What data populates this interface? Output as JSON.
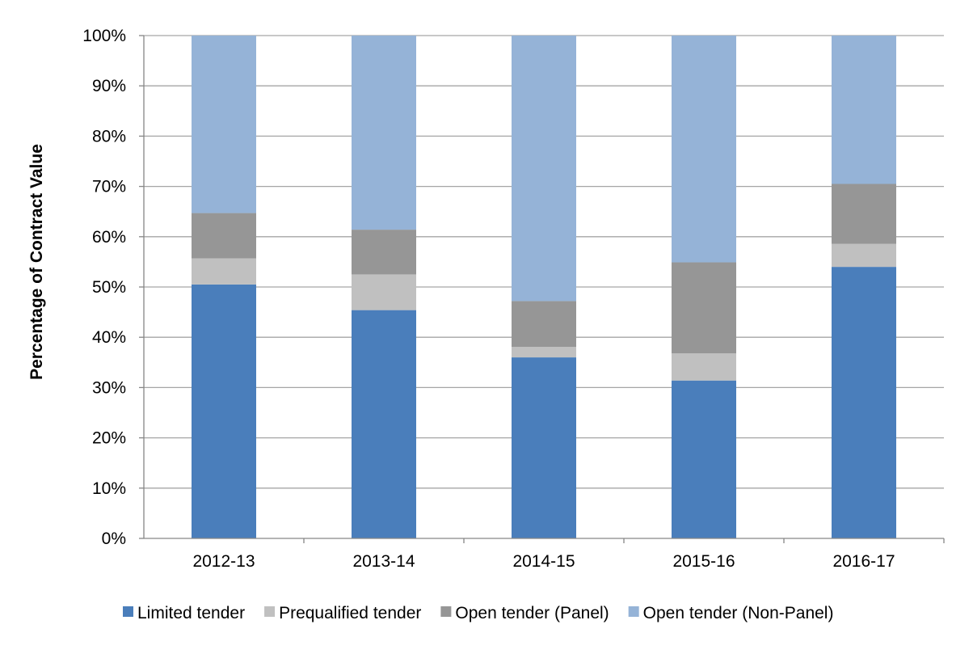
{
  "chart_data": {
    "type": "bar",
    "stacked": true,
    "title": "",
    "xlabel": "",
    "ylabel": "Percentage of Contract Value",
    "ylim": [
      0,
      100
    ],
    "y_ticks": [
      "0%",
      "10%",
      "20%",
      "30%",
      "40%",
      "50%",
      "60%",
      "70%",
      "80%",
      "90%",
      "100%"
    ],
    "grid": true,
    "legend_position": "bottom",
    "categories": [
      "2012-13",
      "2013-14",
      "2014-15",
      "2015-16",
      "2016-17"
    ],
    "series": [
      {
        "name": "Limited tender",
        "color": "#4a7ebb",
        "values": [
          50.5,
          45.4,
          36.0,
          31.4,
          54.0
        ]
      },
      {
        "name": "Prequalified tender",
        "color": "#c0c0c0",
        "values": [
          5.2,
          7.1,
          2.1,
          5.4,
          4.6
        ]
      },
      {
        "name": "Open tender (Panel)",
        "color": "#969696",
        "values": [
          9.0,
          8.9,
          9.1,
          18.1,
          11.9
        ]
      },
      {
        "name": "Open tender (Non-Panel)",
        "color": "#95b3d7",
        "values": [
          35.3,
          38.6,
          52.8,
          45.1,
          29.5
        ]
      }
    ]
  }
}
